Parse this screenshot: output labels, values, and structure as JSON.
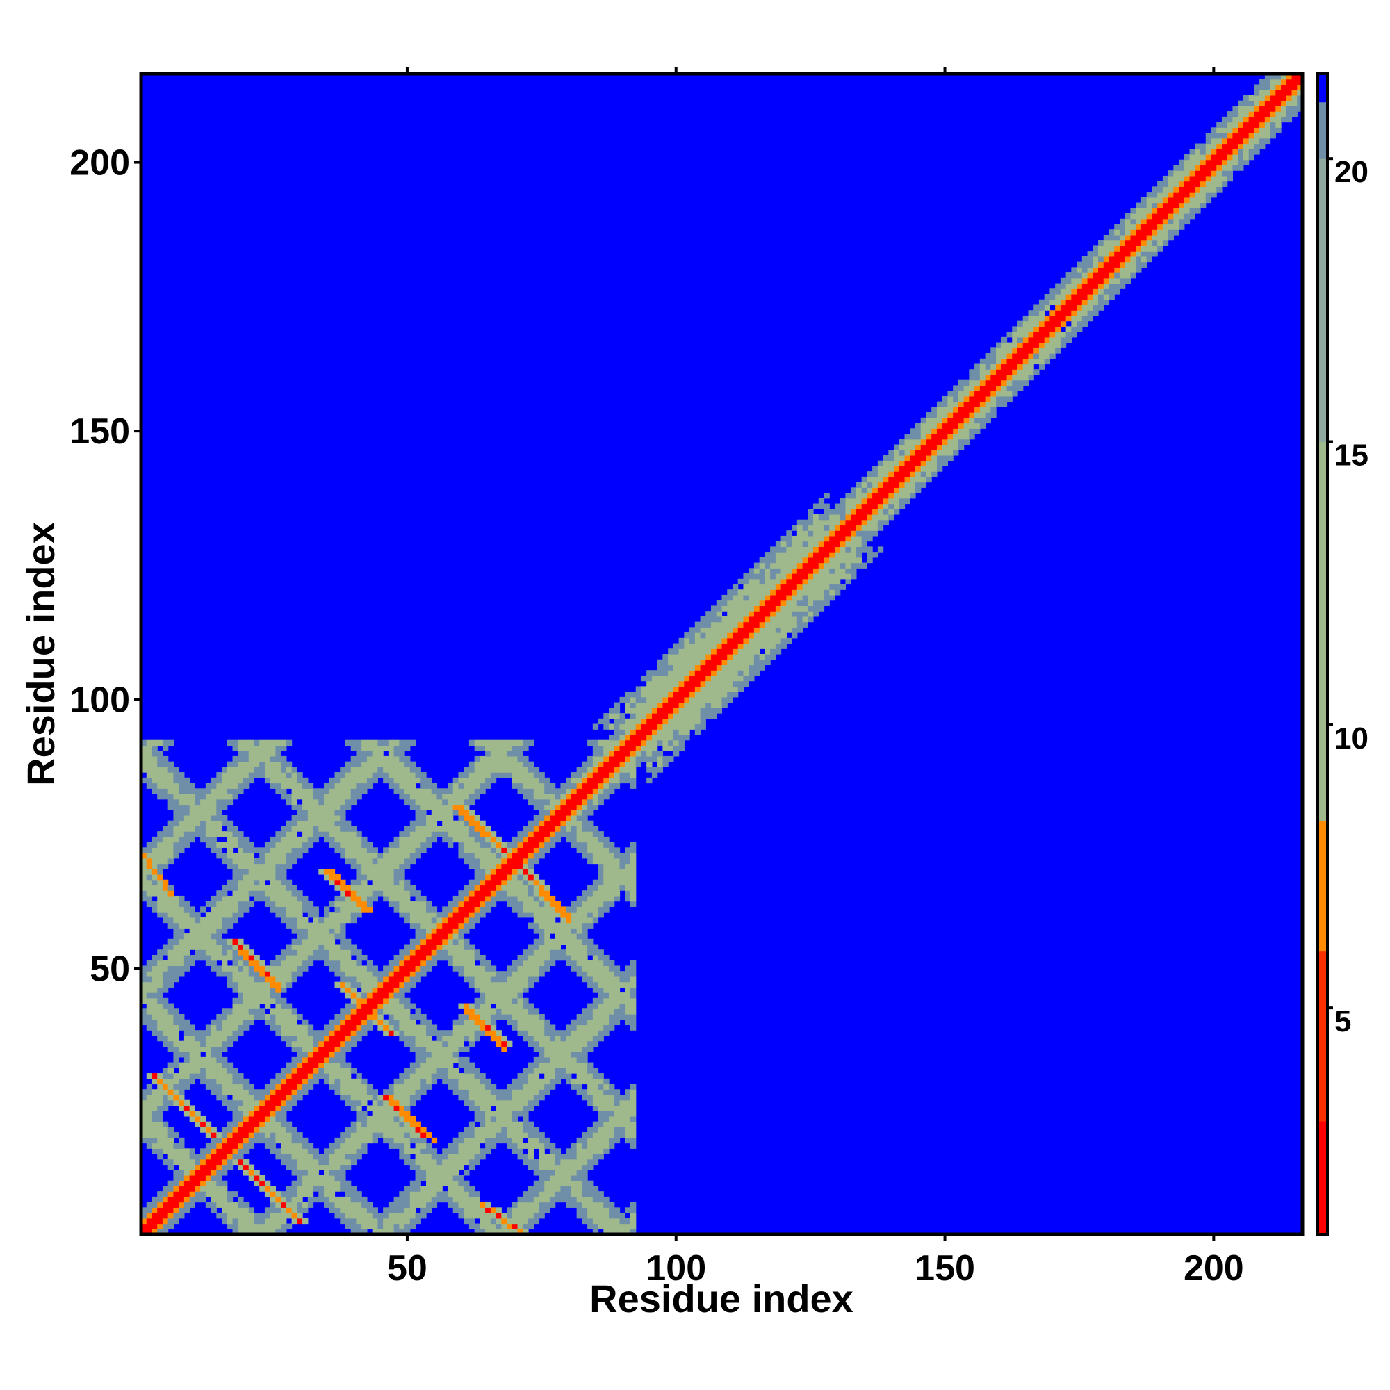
{
  "chart_data": {
    "type": "heatmap",
    "title": "",
    "xlabel": "Residue index",
    "ylabel": "Residue index",
    "n_residues": 216,
    "xlim": [
      1,
      216
    ],
    "ylim": [
      1,
      216
    ],
    "x_ticks": [
      50,
      100,
      150,
      200
    ],
    "y_ticks": [
      50,
      100,
      150,
      200
    ],
    "x_tick_labels": [
      "50",
      "100",
      "150",
      "200"
    ],
    "y_tick_labels": [
      "50",
      "100",
      "150",
      "200"
    ],
    "colorbar": {
      "range": [
        1,
        21.5
      ],
      "ticks": [
        5,
        10,
        15,
        20
      ],
      "tick_labels": [
        "5",
        "10",
        "15",
        "20"
      ],
      "colors": {
        "near": "#ff0000",
        "mid": "#ff8c00",
        "far": "#9fb98c",
        "farther": "#6f8fa8",
        "background": "#0000ff"
      }
    },
    "diagonal_bands": [
      {
        "from": 1,
        "to": 80,
        "halfwidth": 3,
        "value": 1.5
      },
      {
        "from": 80,
        "to": 95,
        "halfwidth": 5,
        "value": 8
      },
      {
        "from": 95,
        "to": 128,
        "halfwidth": 10,
        "value": 9
      },
      {
        "from": 128,
        "to": 216,
        "halfwidth": 6,
        "value": 8
      }
    ],
    "contact_lattice": {
      "residue_range": [
        1,
        92
      ],
      "spacing": 22.5,
      "description_values": [
        7,
        9,
        11
      ]
    },
    "antidiagonal_contacts": [
      {
        "x0": 3,
        "y0": 30,
        "x1": 14,
        "y1": 19,
        "value": 6
      },
      {
        "x0": 19,
        "y0": 14,
        "x1": 30,
        "y1": 3,
        "value": 6
      },
      {
        "x0": 18,
        "y0": 55,
        "x1": 26,
        "y1": 47,
        "value": 6
      },
      {
        "x0": 35,
        "y0": 68,
        "x1": 42,
        "y1": 61,
        "value": 6
      },
      {
        "x0": 38,
        "y0": 47,
        "x1": 47,
        "y1": 38,
        "value": 6
      },
      {
        "x0": 46,
        "y0": 26,
        "x1": 53,
        "y1": 19,
        "value": 6
      },
      {
        "x0": 60,
        "y0": 80,
        "x1": 70,
        "y1": 70,
        "value": 6
      },
      {
        "x0": 70,
        "y0": 70,
        "x1": 80,
        "y1": 59,
        "value": 6
      },
      {
        "x0": 61,
        "y0": 43,
        "x1": 68,
        "y1": 36,
        "value": 6
      },
      {
        "x0": 64,
        "y0": 6,
        "x1": 71,
        "y1": 1,
        "value": 6
      }
    ],
    "grid": false,
    "legend": "colorbar-right"
  }
}
